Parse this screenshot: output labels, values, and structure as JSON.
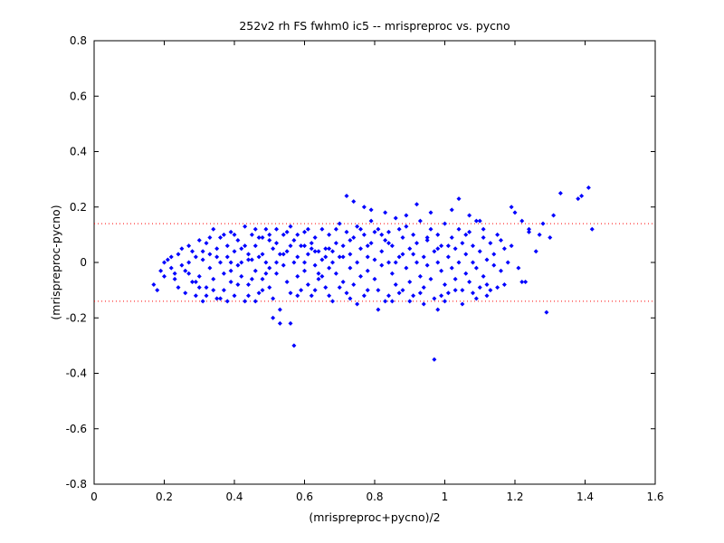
{
  "chart_data": {
    "type": "scatter",
    "title": "252v2 rh FS fwhm0 ic5 -- mrispreproc vs. pycno",
    "xlabel": "(mrispreproc+pycno)/2",
    "ylabel": "(mrispreproc-pycno)",
    "xlim": [
      0,
      1.6
    ],
    "ylim": [
      -0.8,
      0.8
    ],
    "xticks": [
      "0",
      "0.2",
      "0.4",
      "0.6",
      "0.8",
      "1",
      "1.2",
      "1.4",
      "1.6"
    ],
    "yticks": [
      "0.8",
      "0.6",
      "0.4",
      "0.2",
      "0",
      "-0.2",
      "-0.4",
      "-0.6",
      "-0.8"
    ],
    "reference_lines": [
      0.14,
      -0.14
    ],
    "reference_line_style": "dotted",
    "grid": false,
    "marker": "diamond",
    "colors": {
      "points": "#0000ff",
      "reference": "#ff0000",
      "axes": "#000000"
    },
    "points": [
      [
        0.17,
        -0.08
      ],
      [
        0.18,
        -0.1
      ],
      [
        0.19,
        -0.03
      ],
      [
        0.2,
        0.0
      ],
      [
        0.2,
        -0.05
      ],
      [
        0.21,
        0.01
      ],
      [
        0.22,
        -0.02
      ],
      [
        0.22,
        0.02
      ],
      [
        0.23,
        -0.04
      ],
      [
        0.23,
        -0.06
      ],
      [
        0.24,
        0.03
      ],
      [
        0.24,
        -0.09
      ],
      [
        0.25,
        -0.01
      ],
      [
        0.25,
        0.05
      ],
      [
        0.26,
        -0.03
      ],
      [
        0.26,
        -0.11
      ],
      [
        0.27,
        0.06
      ],
      [
        0.27,
        0.0
      ],
      [
        0.28,
        -0.07
      ],
      [
        0.28,
        0.04
      ],
      [
        0.29,
        -0.12
      ],
      [
        0.29,
        0.02
      ],
      [
        0.3,
        0.08
      ],
      [
        0.3,
        -0.05
      ],
      [
        0.31,
        -0.14
      ],
      [
        0.31,
        0.01
      ],
      [
        0.32,
        0.07
      ],
      [
        0.32,
        -0.09
      ],
      [
        0.33,
        0.03
      ],
      [
        0.33,
        -0.02
      ],
      [
        0.34,
        0.12
      ],
      [
        0.34,
        -0.06
      ],
      [
        0.35,
        -0.13
      ],
      [
        0.35,
        0.05
      ],
      [
        0.36,
        0.0
      ],
      [
        0.36,
        0.09
      ],
      [
        0.37,
        -0.04
      ],
      [
        0.37,
        -0.1
      ],
      [
        0.38,
        0.06
      ],
      [
        0.38,
        0.02
      ],
      [
        0.39,
        0.11
      ],
      [
        0.39,
        -0.07
      ],
      [
        0.4,
        -0.12
      ],
      [
        0.4,
        0.04
      ],
      [
        0.41,
        -0.01
      ],
      [
        0.41,
        0.08
      ],
      [
        0.42,
        0.0
      ],
      [
        0.42,
        -0.05
      ],
      [
        0.43,
        0.13
      ],
      [
        0.43,
        -0.14
      ],
      [
        0.44,
        0.03
      ],
      [
        0.44,
        -0.08
      ],
      [
        0.45,
        0.1
      ],
      [
        0.45,
        0.01
      ],
      [
        0.46,
        -0.03
      ],
      [
        0.46,
        0.06
      ],
      [
        0.47,
        -0.11
      ],
      [
        0.47,
        0.02
      ],
      [
        0.48,
        0.09
      ],
      [
        0.48,
        -0.06
      ],
      [
        0.49,
        0.0
      ],
      [
        0.49,
        0.12
      ],
      [
        0.5,
        -0.02
      ],
      [
        0.5,
        -0.09
      ],
      [
        0.51,
        0.05
      ],
      [
        0.51,
        -0.13
      ],
      [
        0.52,
        0.07
      ],
      [
        0.52,
        -0.04
      ],
      [
        0.53,
        0.03
      ],
      [
        0.53,
        -0.17
      ],
      [
        0.54,
        0.1
      ],
      [
        0.54,
        -0.01
      ],
      [
        0.55,
        -0.07
      ],
      [
        0.55,
        0.04
      ],
      [
        0.56,
        0.13
      ],
      [
        0.56,
        -0.11
      ],
      [
        0.57,
        0.0
      ],
      [
        0.57,
        0.08
      ],
      [
        0.58,
        -0.05
      ],
      [
        0.58,
        0.02
      ],
      [
        0.59,
        -0.1
      ],
      [
        0.59,
        0.06
      ],
      [
        0.6,
        0.11
      ],
      [
        0.6,
        -0.03
      ],
      [
        0.61,
        -0.08
      ],
      [
        0.61,
        0.03
      ],
      [
        0.62,
        0.07
      ],
      [
        0.62,
        -0.12
      ],
      [
        0.63,
        -0.01
      ],
      [
        0.63,
        0.09
      ],
      [
        0.64,
        0.04
      ],
      [
        0.64,
        -0.06
      ],
      [
        0.65,
        0.12
      ],
      [
        0.65,
        0.01
      ],
      [
        0.66,
        -0.09
      ],
      [
        0.66,
        0.05
      ],
      [
        0.67,
        -0.02
      ],
      [
        0.67,
        0.1
      ],
      [
        0.68,
        0.0
      ],
      [
        0.68,
        -0.14
      ],
      [
        0.69,
        0.07
      ],
      [
        0.69,
        -0.04
      ],
      [
        0.7,
        0.14
      ],
      [
        0.7,
        0.02
      ],
      [
        0.71,
        -0.07
      ],
      [
        0.71,
        0.06
      ],
      [
        0.72,
        -0.11
      ],
      [
        0.72,
        0.11
      ],
      [
        0.73,
        0.03
      ],
      [
        0.73,
        -0.02
      ],
      [
        0.74,
        0.09
      ],
      [
        0.74,
        -0.08
      ],
      [
        0.75,
        0.0
      ],
      [
        0.75,
        0.13
      ],
      [
        0.76,
        -0.05
      ],
      [
        0.76,
        0.05
      ],
      [
        0.77,
        0.1
      ],
      [
        0.77,
        -0.12
      ],
      [
        0.78,
        0.02
      ],
      [
        0.78,
        -0.03
      ],
      [
        0.79,
        0.15
      ],
      [
        0.79,
        0.07
      ],
      [
        0.8,
        -0.06
      ],
      [
        0.8,
        0.01
      ],
      [
        0.81,
        -0.1
      ],
      [
        0.81,
        0.12
      ],
      [
        0.82,
        0.04
      ],
      [
        0.82,
        -0.01
      ],
      [
        0.83,
        0.08
      ],
      [
        0.83,
        -0.14
      ],
      [
        0.84,
        0.0
      ],
      [
        0.84,
        0.11
      ],
      [
        0.85,
        -0.04
      ],
      [
        0.85,
        0.06
      ],
      [
        0.86,
        0.16
      ],
      [
        0.86,
        -0.08
      ],
      [
        0.87,
        0.02
      ],
      [
        0.87,
        -0.11
      ],
      [
        0.88,
        0.09
      ],
      [
        0.88,
        0.03
      ],
      [
        0.89,
        -0.02
      ],
      [
        0.89,
        0.13
      ],
      [
        0.9,
        -0.07
      ],
      [
        0.9,
        0.05
      ],
      [
        0.91,
        0.1
      ],
      [
        0.91,
        -0.12
      ],
      [
        0.92,
        0.0
      ],
      [
        0.92,
        0.07
      ],
      [
        0.93,
        -0.05
      ],
      [
        0.93,
        0.15
      ],
      [
        0.94,
        0.02
      ],
      [
        0.94,
        -0.09
      ],
      [
        0.95,
        0.08
      ],
      [
        0.95,
        -0.01
      ],
      [
        0.96,
        0.12
      ],
      [
        0.96,
        -0.06
      ],
      [
        0.97,
        0.04
      ],
      [
        0.97,
        -0.13
      ],
      [
        0.98,
        0.0
      ],
      [
        0.98,
        0.1
      ],
      [
        0.99,
        -0.03
      ],
      [
        0.99,
        0.06
      ],
      [
        1.0,
        0.14
      ],
      [
        1.0,
        -0.08
      ],
      [
        1.01,
        0.02
      ],
      [
        1.01,
        -0.11
      ],
      [
        1.02,
        0.09
      ],
      [
        1.02,
        -0.02
      ],
      [
        1.03,
        0.05
      ],
      [
        1.03,
        -0.06
      ],
      [
        1.04,
        0.12
      ],
      [
        1.04,
        0.0
      ],
      [
        1.05,
        -0.1
      ],
      [
        1.05,
        0.07
      ],
      [
        1.06,
        0.03
      ],
      [
        1.06,
        -0.04
      ],
      [
        1.07,
        0.11
      ],
      [
        1.07,
        -0.07
      ],
      [
        1.08,
        0.0
      ],
      [
        1.08,
        0.06
      ],
      [
        1.09,
        -0.02
      ],
      [
        1.09,
        0.15
      ],
      [
        1.1,
        -0.09
      ],
      [
        1.1,
        0.04
      ],
      [
        1.11,
        0.09
      ],
      [
        1.11,
        -0.05
      ],
      [
        1.12,
        0.01
      ],
      [
        1.12,
        -0.12
      ],
      [
        1.13,
        0.07
      ],
      [
        1.14,
        -0.01
      ],
      [
        1.14,
        0.03
      ],
      [
        1.15,
        0.1
      ],
      [
        1.16,
        -0.03
      ],
      [
        1.17,
        0.05
      ],
      [
        1.18,
        0.0
      ],
      [
        1.19,
        0.06
      ],
      [
        1.2,
        0.18
      ],
      [
        1.21,
        -0.02
      ],
      [
        1.22,
        0.15
      ],
      [
        1.23,
        -0.07
      ],
      [
        1.24,
        0.11
      ],
      [
        1.26,
        0.04
      ],
      [
        1.28,
        0.14
      ],
      [
        1.29,
        -0.18
      ],
      [
        1.3,
        0.09
      ],
      [
        1.31,
        0.17
      ],
      [
        1.33,
        0.25
      ],
      [
        1.38,
        0.23
      ],
      [
        1.39,
        0.24
      ],
      [
        1.41,
        0.27
      ],
      [
        1.42,
        0.12
      ],
      [
        0.34,
        -0.1
      ],
      [
        0.36,
        -0.13
      ],
      [
        0.39,
        -0.03
      ],
      [
        0.41,
        -0.08
      ],
      [
        0.43,
        0.06
      ],
      [
        0.45,
        -0.06
      ],
      [
        0.47,
        0.09
      ],
      [
        0.49,
        -0.04
      ],
      [
        0.5,
        0.08
      ],
      [
        0.52,
        0.0
      ],
      [
        0.53,
        -0.22
      ],
      [
        0.55,
        0.11
      ],
      [
        0.56,
        -0.22
      ],
      [
        0.57,
        -0.3
      ],
      [
        0.51,
        -0.2
      ],
      [
        0.6,
        0.0
      ],
      [
        0.62,
        0.05
      ],
      [
        0.64,
        -0.04
      ],
      [
        0.66,
        0.02
      ],
      [
        0.68,
        0.04
      ],
      [
        0.7,
        -0.09
      ],
      [
        0.72,
        0.24
      ],
      [
        0.74,
        0.22
      ],
      [
        0.75,
        -0.15
      ],
      [
        0.77,
        0.2
      ],
      [
        0.79,
        0.19
      ],
      [
        0.81,
        -0.17
      ],
      [
        0.83,
        0.18
      ],
      [
        0.85,
        -0.14
      ],
      [
        0.86,
        0.0
      ],
      [
        0.89,
        0.17
      ],
      [
        0.9,
        -0.14
      ],
      [
        0.92,
        0.21
      ],
      [
        0.94,
        -0.15
      ],
      [
        0.96,
        0.18
      ],
      [
        0.97,
        -0.35
      ],
      [
        0.98,
        -0.17
      ],
      [
        1.0,
        -0.14
      ],
      [
        1.02,
        0.19
      ],
      [
        1.04,
        0.23
      ],
      [
        1.05,
        -0.15
      ],
      [
        1.07,
        0.17
      ],
      [
        1.09,
        -0.13
      ],
      [
        1.1,
        0.15
      ],
      [
        1.13,
        -0.1
      ],
      [
        1.15,
        -0.09
      ],
      [
        1.17,
        -0.08
      ],
      [
        1.19,
        0.2
      ],
      [
        1.22,
        -0.07
      ],
      [
        1.24,
        0.12
      ],
      [
        1.27,
        0.1
      ],
      [
        0.3,
        -0.09
      ],
      [
        0.32,
        -0.12
      ],
      [
        0.38,
        -0.14
      ],
      [
        0.44,
        -0.12
      ],
      [
        0.46,
        -0.14
      ],
      [
        0.48,
        -0.1
      ],
      [
        0.58,
        -0.12
      ],
      [
        0.63,
        -0.1
      ],
      [
        0.67,
        -0.12
      ],
      [
        0.73,
        -0.13
      ],
      [
        0.78,
        -0.1
      ],
      [
        0.84,
        -0.12
      ],
      [
        0.88,
        -0.1
      ],
      [
        0.93,
        -0.11
      ],
      [
        0.99,
        -0.12
      ],
      [
        1.03,
        -0.1
      ],
      [
        1.08,
        -0.11
      ],
      [
        1.12,
        -0.08
      ],
      [
        0.27,
        -0.04
      ],
      [
        0.29,
        -0.07
      ],
      [
        0.31,
        0.04
      ],
      [
        0.33,
        0.09
      ],
      [
        0.35,
        0.02
      ],
      [
        0.37,
        0.1
      ],
      [
        0.39,
        0.0
      ],
      [
        0.4,
        0.1
      ],
      [
        0.42,
        0.05
      ],
      [
        0.44,
        0.01
      ],
      [
        0.46,
        0.12
      ],
      [
        0.48,
        0.03
      ],
      [
        0.5,
        0.1
      ],
      [
        0.52,
        0.12
      ],
      [
        0.54,
        0.03
      ],
      [
        0.56,
        0.06
      ],
      [
        0.58,
        0.1
      ],
      [
        0.6,
        0.06
      ],
      [
        0.61,
        0.12
      ],
      [
        0.63,
        0.04
      ],
      [
        0.65,
        -0.05
      ],
      [
        0.67,
        0.05
      ],
      [
        0.69,
        0.12
      ],
      [
        0.71,
        0.02
      ],
      [
        0.73,
        0.08
      ],
      [
        0.76,
        0.12
      ],
      [
        0.78,
        0.06
      ],
      [
        0.8,
        0.11
      ],
      [
        0.82,
        0.1
      ],
      [
        0.84,
        0.07
      ],
      [
        0.87,
        0.12
      ],
      [
        0.91,
        0.03
      ],
      [
        0.95,
        0.09
      ],
      [
        0.98,
        0.05
      ],
      [
        1.01,
        0.06
      ],
      [
        1.06,
        0.1
      ],
      [
        1.11,
        0.12
      ],
      [
        1.16,
        0.08
      ]
    ]
  }
}
